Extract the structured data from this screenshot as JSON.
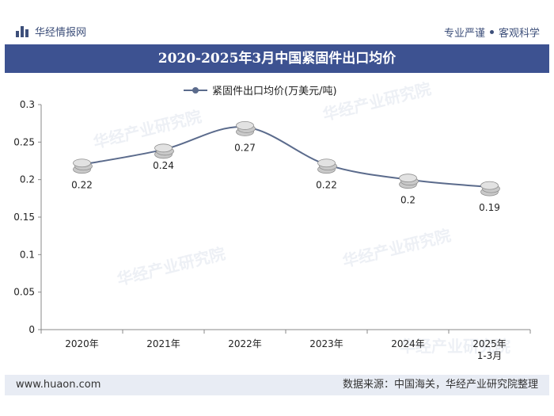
{
  "header": {
    "brand": "华经情报网",
    "tagline_left": "专业严谨",
    "tagline_right": "客观科学"
  },
  "title": "2020-2025年3月中国紧固件出口均价",
  "watermark": "华经产业研究院",
  "footer": {
    "website": "www.huaon.com",
    "source": "数据来源：中国海关，华经产业研究院整理"
  },
  "colors": {
    "line": "#5b6b8c",
    "title_bg": "#3d5291",
    "coin": "#c9c9c9"
  },
  "chart_data": {
    "type": "line",
    "categories": [
      "2020年",
      "2021年",
      "2022年",
      "2023年",
      "2024年",
      "2025年\n1-3月"
    ],
    "series": [
      {
        "name": "紧固件出口均价(万美元/吨)",
        "values": [
          0.22,
          0.24,
          0.27,
          0.22,
          0.2,
          0.19
        ]
      }
    ],
    "data_labels": [
      "0.22",
      "0.24",
      "0.27",
      "0.22",
      "0.2",
      "0.19"
    ],
    "ylim": [
      0,
      0.3
    ],
    "yticks": [
      "0",
      "0.05",
      "0.1",
      "0.15",
      "0.2",
      "0.25",
      "0.3"
    ],
    "legend": "top-center",
    "grid": false
  }
}
